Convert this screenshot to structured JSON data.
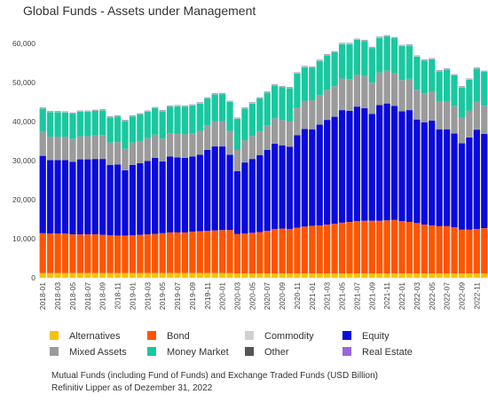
{
  "chart_data": {
    "type": "bar",
    "stacked": true,
    "title": "Global Funds - Assets under Management",
    "xlabel": "",
    "ylabel": "",
    "ylim": [
      0,
      62000
    ],
    "yticks": [
      "0",
      "10,000",
      "20,000",
      "30,000",
      "40,000",
      "50,000",
      "60,000"
    ],
    "ytick_values": [
      0,
      10000,
      20000,
      30000,
      40000,
      50000,
      60000
    ],
    "grid": false,
    "legend_position": "bottom",
    "categories": [
      "2018-01",
      "2018-02",
      "2018-03",
      "2018-04",
      "2018-05",
      "2018-06",
      "2018-07",
      "2018-08",
      "2018-09",
      "2018-10",
      "2018-11",
      "2018-12",
      "2019-01",
      "2019-02",
      "2019-03",
      "2019-04",
      "2019-05",
      "2019-06",
      "2019-07",
      "2019-08",
      "2019-09",
      "2019-10",
      "2019-11",
      "2019-12",
      "2020-01",
      "2020-02",
      "2020-03",
      "2020-04",
      "2020-05",
      "2020-06",
      "2020-07",
      "2020-08",
      "2020-09",
      "2020-10",
      "2020-11",
      "2020-12",
      "2021-01",
      "2021-02",
      "2021-03",
      "2021-04",
      "2021-05",
      "2021-06",
      "2021-07",
      "2021-08",
      "2021-09",
      "2021-10",
      "2021-11",
      "2021-12",
      "2022-01",
      "2022-02",
      "2022-03",
      "2022-04",
      "2022-05",
      "2022-06",
      "2022-07",
      "2022-08",
      "2022-09",
      "2022-10",
      "2022-11",
      "2022-12"
    ],
    "tick_labels": [
      "2018-01",
      "2018-03",
      "2018-05",
      "2018-07",
      "2018-09",
      "2018-11",
      "2019-01",
      "2019-03",
      "2019-05",
      "2019-07",
      "2019-09",
      "2019-11",
      "2020-01",
      "2020-03",
      "2020-05",
      "2020-07",
      "2020-09",
      "2020-11",
      "2021-01",
      "2021-03",
      "2021-05",
      "2021-07",
      "2021-09",
      "2021-11",
      "2022-01",
      "2022-03",
      "2022-05",
      "2022-07",
      "2022-09",
      "2022-11"
    ],
    "series": [
      {
        "name": "Alternatives",
        "color": "#f5c400",
        "values": [
          1200,
          1200,
          1200,
          1200,
          1200,
          1200,
          1200,
          1200,
          1200,
          1200,
          1200,
          1200,
          1200,
          1200,
          1200,
          1200,
          1200,
          1200,
          1200,
          1200,
          1200,
          1200,
          1200,
          1200,
          1200,
          1200,
          1100,
          1100,
          1100,
          1100,
          1100,
          1100,
          1100,
          1100,
          1100,
          1100,
          1100,
          1100,
          1100,
          1100,
          1100,
          1100,
          1100,
          1100,
          1100,
          1100,
          1100,
          1100,
          1100,
          1100,
          1100,
          1100,
          1100,
          1100,
          1100,
          1100,
          1100,
          1100,
          1100,
          1100
        ]
      },
      {
        "name": "Bond",
        "color": "#ff5500",
        "values": [
          10200,
          10100,
          10100,
          10100,
          9900,
          9900,
          9900,
          9900,
          9800,
          9700,
          9600,
          9600,
          9700,
          9800,
          9900,
          10000,
          10200,
          10400,
          10400,
          10400,
          10600,
          10700,
          10800,
          10900,
          11000,
          11000,
          10100,
          10200,
          10400,
          10600,
          10900,
          11400,
          11500,
          11400,
          11700,
          12000,
          12200,
          12300,
          12500,
          12700,
          13000,
          13200,
          13400,
          13500,
          13500,
          13500,
          13600,
          13700,
          13400,
          13200,
          12900,
          12500,
          12300,
          12100,
          12100,
          11800,
          11200,
          11200,
          11400,
          11600
        ]
      },
      {
        "name": "Equity",
        "color": "#0a0adc",
        "values": [
          19800,
          18800,
          18800,
          18800,
          18600,
          19200,
          19200,
          19300,
          19400,
          18000,
          18200,
          16700,
          18000,
          18300,
          18800,
          19500,
          18400,
          19400,
          19200,
          19100,
          19200,
          19600,
          20700,
          21500,
          21400,
          19300,
          16100,
          18200,
          18900,
          19700,
          20700,
          21800,
          21300,
          21000,
          23700,
          25000,
          24700,
          25800,
          26800,
          27400,
          28800,
          28400,
          29300,
          28800,
          27300,
          29600,
          29900,
          29200,
          28100,
          28600,
          26500,
          26200,
          26800,
          24800,
          24800,
          24000,
          22100,
          23600,
          25400,
          24100
        ]
      },
      {
        "name": "Mixed Assets",
        "color": "#9b9b9b",
        "values": [
          6100,
          6000,
          6000,
          6000,
          5800,
          5900,
          5900,
          6000,
          6100,
          5700,
          5700,
          5500,
          5700,
          5700,
          5800,
          5900,
          5800,
          6000,
          6100,
          6000,
          6000,
          6100,
          6300,
          6400,
          6400,
          6100,
          5400,
          5700,
          5900,
          6100,
          6300,
          6500,
          6500,
          6500,
          7100,
          7200,
          7400,
          7500,
          7700,
          7800,
          8100,
          8100,
          8200,
          8200,
          8000,
          8300,
          8400,
          8300,
          8000,
          8000,
          7600,
          7400,
          7500,
          7000,
          7200,
          7000,
          6600,
          6900,
          7200,
          7200
        ]
      },
      {
        "name": "Money Market",
        "color": "#19c8a0",
        "values": [
          6000,
          6300,
          6300,
          6200,
          6500,
          6300,
          6300,
          6300,
          6300,
          6400,
          6600,
          7100,
          6700,
          6800,
          6800,
          6800,
          7000,
          6800,
          7000,
          7100,
          7100,
          7000,
          6900,
          6900,
          7000,
          7400,
          8000,
          8100,
          8300,
          8400,
          8400,
          8400,
          8400,
          8500,
          8700,
          8600,
          8400,
          8800,
          8800,
          8700,
          8800,
          9000,
          8900,
          9000,
          8900,
          8900,
          8800,
          9000,
          8700,
          8500,
          8500,
          8400,
          8200,
          7800,
          8100,
          7900,
          7700,
          7900,
          8400,
          8700
        ]
      },
      {
        "name": "Commodity",
        "color": "#d0d0d0",
        "values": [
          150,
          150,
          150,
          150,
          150,
          150,
          150,
          150,
          150,
          150,
          150,
          150,
          150,
          150,
          150,
          150,
          150,
          150,
          150,
          150,
          150,
          150,
          150,
          150,
          150,
          150,
          150,
          150,
          150,
          150,
          150,
          150,
          150,
          150,
          150,
          150,
          150,
          150,
          150,
          150,
          150,
          150,
          150,
          150,
          150,
          150,
          150,
          150,
          150,
          150,
          150,
          150,
          150,
          150,
          150,
          150,
          150,
          150,
          150,
          150
        ]
      },
      {
        "name": "Other",
        "color": "#555555",
        "values": [
          80,
          80,
          80,
          80,
          80,
          80,
          80,
          80,
          80,
          80,
          80,
          80,
          80,
          80,
          80,
          80,
          80,
          80,
          80,
          80,
          80,
          80,
          80,
          80,
          80,
          80,
          80,
          80,
          80,
          80,
          80,
          80,
          80,
          80,
          80,
          80,
          80,
          80,
          80,
          80,
          80,
          80,
          80,
          80,
          80,
          80,
          80,
          80,
          80,
          80,
          80,
          80,
          80,
          80,
          80,
          80,
          80,
          80,
          80,
          80
        ]
      },
      {
        "name": "Real Estate",
        "color": "#9966dd",
        "values": [
          50,
          50,
          50,
          50,
          50,
          50,
          50,
          50,
          50,
          50,
          50,
          50,
          50,
          50,
          50,
          50,
          50,
          50,
          50,
          50,
          50,
          50,
          50,
          50,
          50,
          50,
          50,
          50,
          50,
          50,
          50,
          50,
          50,
          50,
          50,
          50,
          50,
          50,
          50,
          50,
          50,
          50,
          50,
          50,
          50,
          50,
          50,
          50,
          50,
          50,
          50,
          50,
          50,
          50,
          50,
          50,
          50,
          50,
          50,
          50
        ]
      }
    ]
  },
  "legend": [
    {
      "label": "Alternatives",
      "color": "#f5c400"
    },
    {
      "label": "Bond",
      "color": "#ff5500"
    },
    {
      "label": "Commodity",
      "color": "#d0d0d0"
    },
    {
      "label": "Equity",
      "color": "#0a0adc"
    },
    {
      "label": "Mixed Assets",
      "color": "#9b9b9b"
    },
    {
      "label": "Money Market",
      "color": "#19c8a0"
    },
    {
      "label": "Other",
      "color": "#555555"
    },
    {
      "label": "Real Estate",
      "color": "#9966dd"
    }
  ],
  "notes": {
    "line1": "Mutual Funds (including Fund of Funds) and Exchange Traded Funds (USD Billion)",
    "line2": "Refinitiv Lipper as of Dezember 31, 2022"
  }
}
